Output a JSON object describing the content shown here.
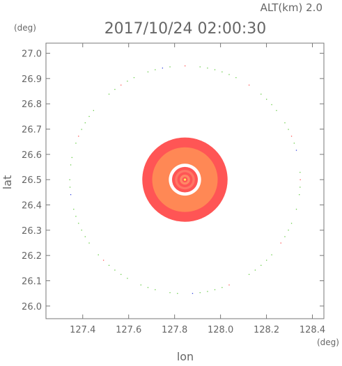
{
  "header": {
    "alt_label": "ALT(km)  2.0",
    "timestamp": "2017/10/24 02:00:30"
  },
  "chart_data": {
    "type": "heatmap",
    "title": "2017/10/24 02:00:30",
    "subtitle": "ALT(km)  2.0",
    "xlabel": "lon",
    "ylabel": "lat",
    "x_unit": "(deg)",
    "y_unit": "(deg)",
    "xlim": [
      127.24,
      128.45
    ],
    "ylim": [
      25.95,
      27.04
    ],
    "x_ticks": [
      127.4,
      127.6,
      127.8,
      128.0,
      128.2,
      128.4
    ],
    "y_ticks": [
      26.0,
      26.1,
      26.2,
      26.3,
      26.4,
      26.5,
      26.6,
      26.7,
      26.8,
      26.9,
      27.0
    ],
    "x_tick_labels": [
      "127.4",
      "127.6",
      "127.8",
      "128.0",
      "128.2",
      "128.4"
    ],
    "y_tick_labels": [
      "26.0",
      "26.1",
      "26.2",
      "26.3",
      "26.4",
      "26.5",
      "26.6",
      "26.7",
      "26.8",
      "26.9",
      "27.0"
    ],
    "grid": false,
    "center": {
      "lon": 127.845,
      "lat": 26.5
    },
    "range_ring_radius_km": 50,
    "echo_rings": [
      {
        "name": "outer-band",
        "radius_km": 18.5,
        "color": "#ff5555"
      },
      {
        "name": "middle-band",
        "radius_km": 14.2,
        "color": "#ff8855"
      },
      {
        "name": "clear-gap",
        "radius_km": 7.0,
        "color": "#ffffff"
      },
      {
        "name": "inner-ring-1",
        "radius_km": 5.6,
        "color": "#ff5555"
      },
      {
        "name": "inner-ring-2",
        "radius_km": 4.3,
        "color": "#ff7766"
      },
      {
        "name": "inner-ring-3",
        "radius_km": 3.3,
        "color": "#ff5555"
      },
      {
        "name": "inner-ring-4",
        "radius_km": 2.2,
        "color": "#ff8866"
      },
      {
        "name": "inner-ring-5",
        "radius_km": 1.2,
        "color": "#ff5555"
      },
      {
        "name": "core",
        "radius_km": 0.5,
        "color": "#ffee55"
      }
    ],
    "colors": {
      "axis": "#777777",
      "text": "#666666",
      "range_ring_dots": [
        "#66cc44",
        "#ff5555",
        "#3344dd"
      ]
    }
  }
}
